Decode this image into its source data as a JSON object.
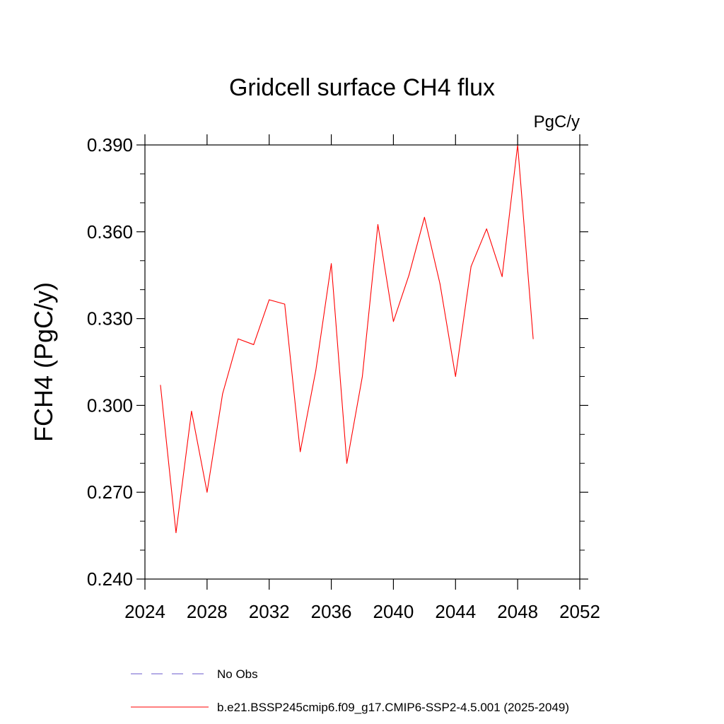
{
  "chart_data": {
    "type": "line",
    "title": "Gridcell surface CH4 flux",
    "units_label": "PgC/y",
    "ylabel": "FCH4  (PgC/y)",
    "xlabel": "",
    "xlim": [
      2024,
      2052
    ],
    "ylim": [
      0.24,
      0.39
    ],
    "x_ticks": [
      2024,
      2028,
      2032,
      2036,
      2040,
      2044,
      2048,
      2052
    ],
    "x_tick_labels": [
      "2024",
      "2028",
      "2032",
      "2036",
      "2040",
      "2044",
      "2048",
      "2052"
    ],
    "y_ticks": [
      0.24,
      0.27,
      0.3,
      0.33,
      0.36,
      0.39
    ],
    "y_tick_labels": [
      "0.240",
      "0.270",
      "0.300",
      "0.330",
      "0.360",
      "0.390"
    ],
    "y_minor_step": 0.01,
    "x_minor_step": 1,
    "grid": false,
    "legend_position": "bottom",
    "series": [
      {
        "name": "b.e21.BSSP245cmip6.f09_g17.CMIP6-SSP2-4.5.001 (2025-2049)",
        "color": "#ff0000",
        "style": "solid",
        "x": [
          2025,
          2026,
          2027,
          2028,
          2029,
          2030,
          2031,
          2032,
          2033,
          2034,
          2035,
          2036,
          2037,
          2038,
          2039,
          2040,
          2041,
          2042,
          2043,
          2044,
          2045,
          2046,
          2047,
          2048,
          2049
        ],
        "values": [
          0.307,
          0.256,
          0.298,
          0.27,
          0.304,
          0.323,
          0.321,
          0.3365,
          0.335,
          0.284,
          0.312,
          0.349,
          0.28,
          0.31,
          0.3625,
          0.329,
          0.345,
          0.365,
          0.342,
          0.31,
          0.348,
          0.361,
          0.3445,
          0.39,
          0.323
        ]
      }
    ],
    "legend": [
      {
        "label": "No Obs",
        "color": "#6a5acd",
        "style": "dashed"
      },
      {
        "label": "b.e21.BSSP245cmip6.f09_g17.CMIP6-SSP2-4.5.001 (2025-2049)",
        "color": "#ff0000",
        "style": "solid"
      }
    ]
  }
}
